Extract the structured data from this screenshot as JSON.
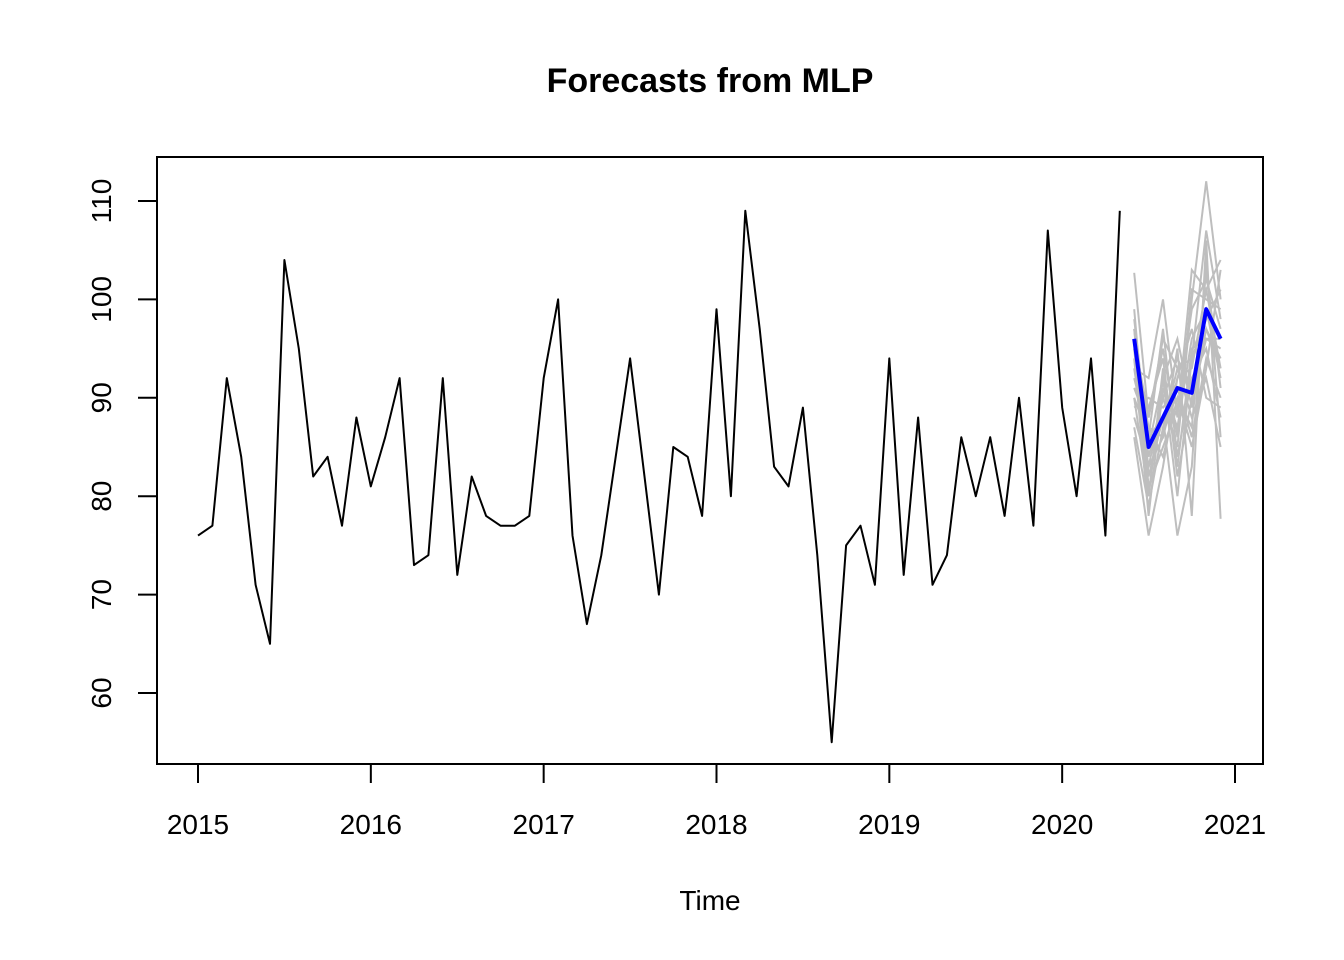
{
  "chart_data": {
    "type": "line",
    "title": "Forecasts from MLP",
    "xlabel": "Time",
    "ylabel": "",
    "xlim": [
      2015,
      2021
    ],
    "ylim": [
      55,
      110
    ],
    "x_ticks": [
      "2015",
      "2016",
      "2017",
      "2018",
      "2019",
      "2020",
      "2021"
    ],
    "y_ticks": [
      "60",
      "70",
      "80",
      "90",
      "100",
      "110"
    ],
    "grid": false,
    "legend": "none",
    "colors": {
      "history": "#000000",
      "forecast": "#0000ff",
      "ensemble": "#bebebe"
    },
    "history": {
      "start": [
        2015,
        1
      ],
      "frequency": 12,
      "values": [
        76,
        77,
        92,
        84,
        71,
        65,
        104,
        95,
        82,
        84,
        77,
        88,
        81,
        86,
        92,
        73,
        74,
        92,
        72,
        82,
        78,
        77,
        77,
        78,
        92,
        100,
        76,
        67,
        74,
        84,
        94,
        82,
        70,
        85,
        84,
        78,
        99,
        80,
        109,
        97,
        83,
        81,
        89,
        74,
        55,
        75,
        77,
        71,
        94,
        72,
        88,
        71,
        74,
        86,
        80,
        86,
        78,
        90,
        77,
        107,
        89,
        80,
        94,
        76,
        109
      ]
    },
    "forecast": {
      "start": [
        2020,
        6
      ],
      "frequency": 12,
      "values": [
        96,
        85,
        88,
        91,
        90.5,
        99,
        96
      ]
    },
    "ensemble": [
      [
        102.7,
        88,
        96,
        93,
        94,
        107,
        98
      ],
      [
        97,
        84,
        90,
        85,
        100,
        112,
        100
      ],
      [
        93,
        92,
        100,
        88,
        103,
        101,
        104
      ],
      [
        90,
        80,
        92,
        96,
        89,
        97,
        93
      ],
      [
        95,
        87,
        84,
        90,
        85,
        93,
        103
      ],
      [
        99,
        82,
        88,
        76,
        83,
        104,
        86
      ],
      [
        86,
        76,
        83,
        92,
        97,
        90,
        89
      ],
      [
        91,
        89,
        94,
        82,
        90,
        96,
        95
      ],
      [
        88,
        83,
        86,
        95,
        78,
        106,
        77.7
      ],
      [
        94,
        78,
        91,
        87,
        96,
        99,
        92
      ],
      [
        92,
        86,
        97,
        84,
        92,
        95,
        88
      ],
      [
        97,
        81,
        85,
        89,
        99,
        102,
        97
      ],
      [
        89,
        90,
        89,
        91,
        86,
        94,
        90
      ],
      [
        98,
        85,
        92,
        80,
        94,
        98,
        101
      ],
      [
        87,
        79,
        87,
        93,
        88,
        92,
        85
      ],
      [
        96,
        88,
        95,
        86,
        101,
        100,
        99
      ],
      [
        93,
        83,
        90,
        94,
        91,
        97,
        94
      ],
      [
        90,
        86,
        88,
        90,
        87,
        103,
        91
      ],
      [
        95,
        80,
        93,
        83,
        95,
        96,
        96
      ],
      [
        91,
        87,
        86,
        92,
        93,
        101,
        93
      ]
    ]
  }
}
